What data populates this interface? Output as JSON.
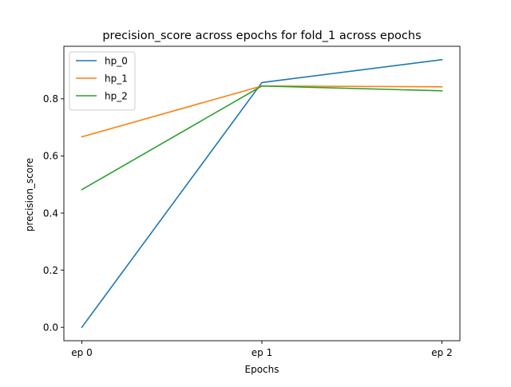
{
  "chart_data": {
    "type": "line",
    "title": "precision_score across epochs for fold_1 across epochs",
    "xlabel": "Epochs",
    "ylabel": "precision_score",
    "categories": [
      "ep 0",
      "ep 1",
      "ep 2"
    ],
    "ylim": [
      -0.047,
      0.984
    ],
    "yticks": [
      "0.0",
      "0.2",
      "0.4",
      "0.6",
      "0.8"
    ],
    "grid": false,
    "legend_position": "top-left",
    "series": [
      {
        "name": "hp_0",
        "color": "#1f77b4",
        "values": [
          0.0,
          0.857,
          0.937
        ]
      },
      {
        "name": "hp_1",
        "color": "#ff7f0e",
        "values": [
          0.667,
          0.845,
          0.842
        ]
      },
      {
        "name": "hp_2",
        "color": "#2ca02c",
        "values": [
          0.482,
          0.845,
          0.828
        ]
      }
    ]
  }
}
